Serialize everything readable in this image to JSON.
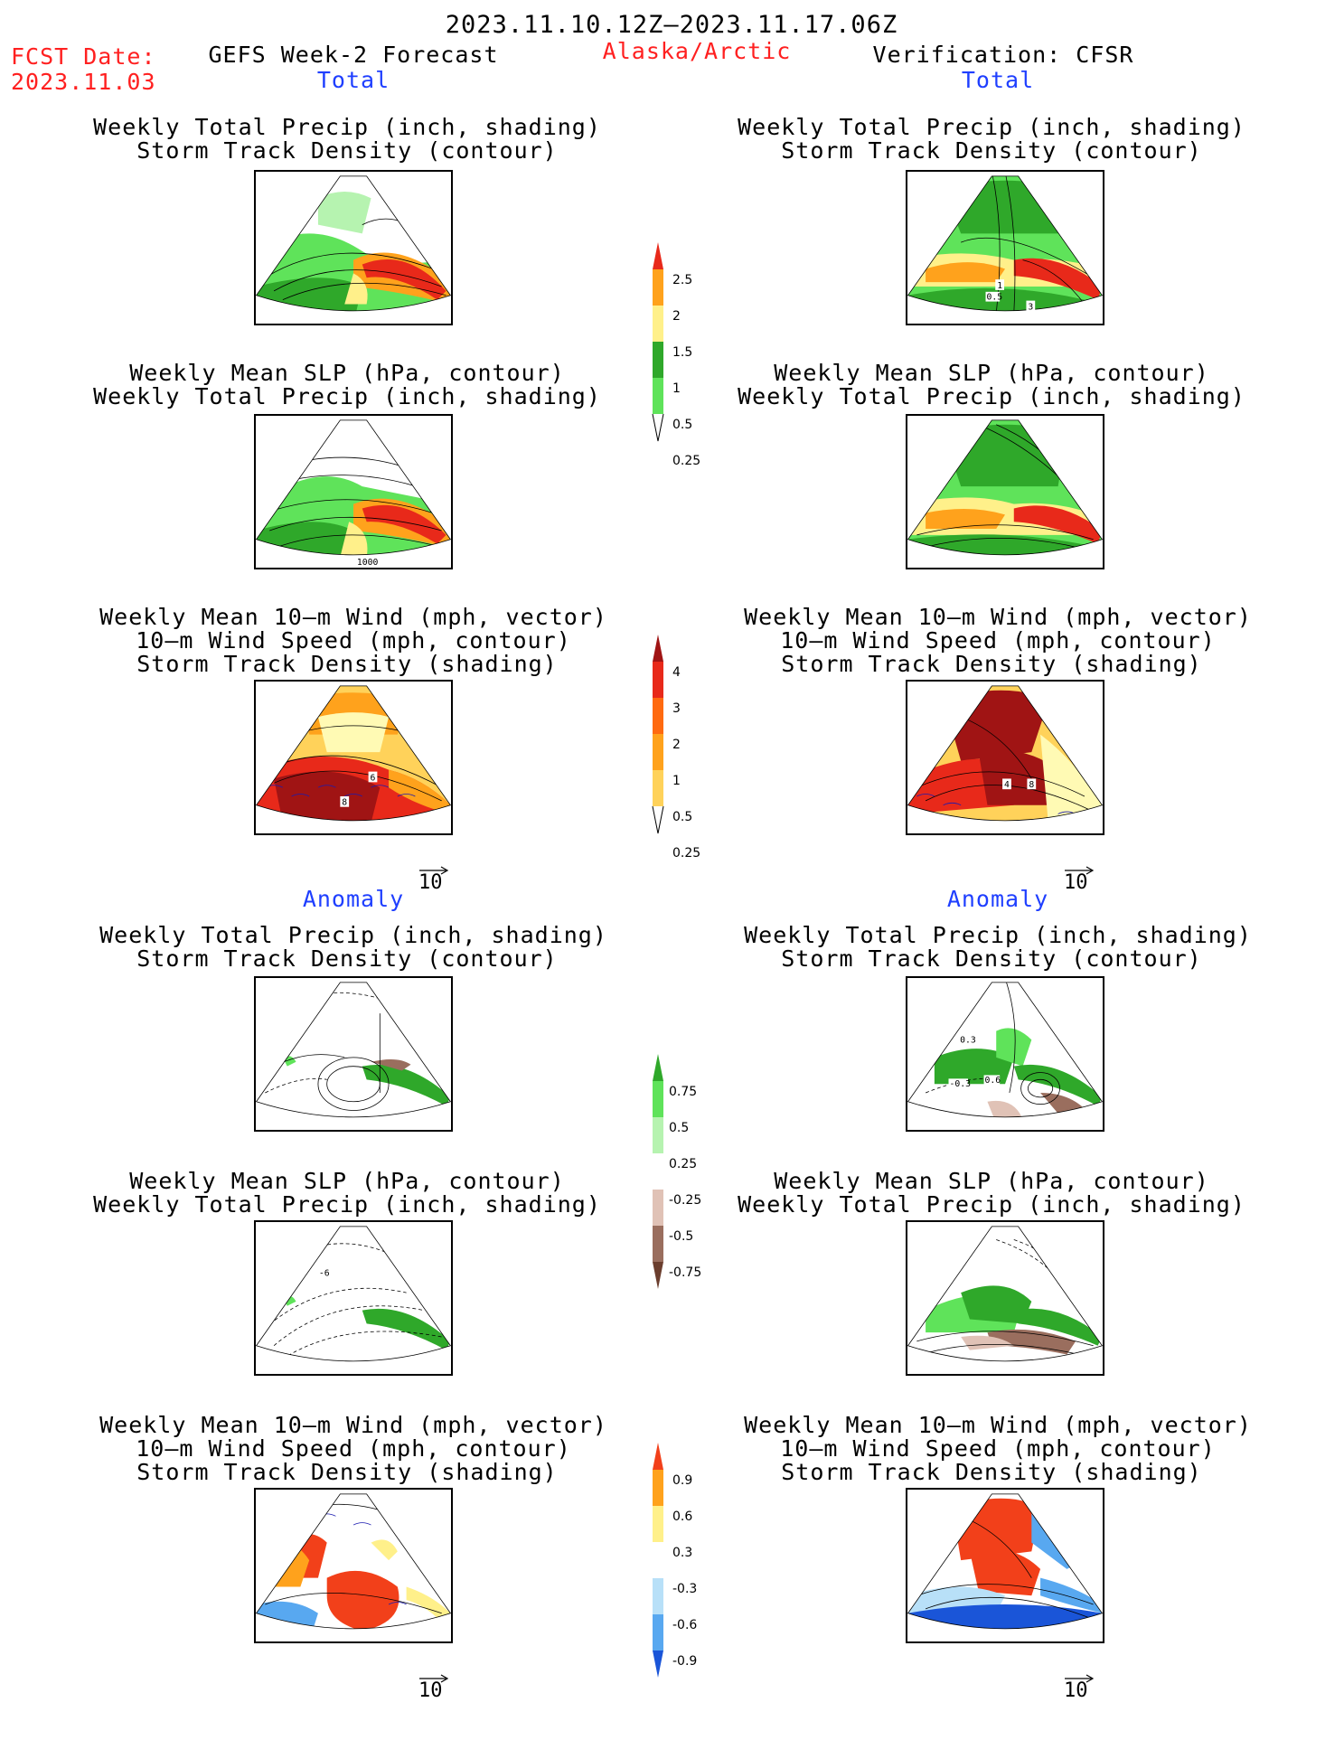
{
  "header": {
    "period": "2023.11.10.12Z–2023.11.17.06Z",
    "fcst_label": "FCST Date:",
    "fcst_date": "2023.11.03",
    "model": "GEFS Week-2 Forecast",
    "region": "Alaska/Arctic",
    "verification": "Verification: CFSR"
  },
  "sections": {
    "total": "Total",
    "anomaly": "Anomaly"
  },
  "titles": {
    "precip_track": [
      "Weekly Total Precip (inch, shading)",
      "Storm Track Density (contour)"
    ],
    "slp_precip": [
      "Weekly Mean SLP (hPa, contour)",
      "Weekly Total Precip (inch, shading)"
    ],
    "wind_track": [
      "Weekly Mean 10–m Wind (mph, vector)",
      "10–m Wind Speed (mph, contour)",
      "Storm Track Density (shading)"
    ]
  },
  "vector_ref": "10",
  "panel_labels": {
    "slp_total_left": "1000",
    "track_total_right_a": "1",
    "track_total_right_b": "0.5",
    "track_total_right_c": "3",
    "wind_total_left_a": "6",
    "wind_total_left_b": "8",
    "wind_total_right_a": "4",
    "wind_total_right_b": "8",
    "anom_right_a": "0.3",
    "anom_right_b": "-0.3",
    "anom_right_c": "0.6",
    "anom_slp_left": "-6"
  },
  "colorbars": {
    "precip_total": {
      "colors": [
        "#b6f3b0",
        "#5fe35a",
        "#2fa82a",
        "#fff08a",
        "#ffa21c",
        "#e8291a"
      ],
      "labels": [
        "0.25",
        "0.5",
        "1",
        "1.5",
        "2",
        "2.5"
      ]
    },
    "track_total": {
      "colors": [
        "#fffab4",
        "#ffd25a",
        "#ffa21c",
        "#ff6a10",
        "#e8291a",
        "#a01414"
      ],
      "labels": [
        "0.25",
        "0.5",
        "1",
        "2",
        "3",
        "4"
      ]
    },
    "precip_anom": {
      "colors": [
        "#6b3e2e",
        "#9a6e5e",
        "#e0c2b6",
        "#ffffff",
        "#b6f3b0",
        "#5fe35a",
        "#2fa82a"
      ],
      "labels": [
        "-0.75",
        "-0.5",
        "-0.25",
        "0.25",
        "0.5",
        "0.75"
      ]
    },
    "track_anom": {
      "colors": [
        "#1a55d8",
        "#58a8f0",
        "#b8e0f8",
        "#ffffff",
        "#fff08a",
        "#ffa21c",
        "#f2401a"
      ],
      "labels": [
        "-0.9",
        "-0.6",
        "-0.3",
        "0.3",
        "0.6",
        "0.9"
      ]
    }
  }
}
